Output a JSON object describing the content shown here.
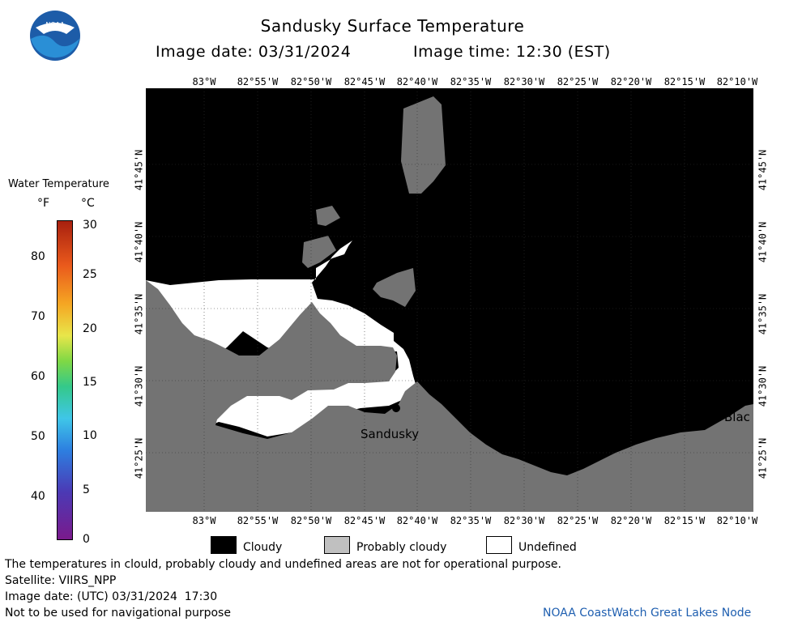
{
  "title": "Sandusky Surface Temperature",
  "image_date_label": "Image date: 03/31/2024",
  "image_time_label": "Image time: 12:30 (EST)",
  "lon_labels": [
    "83°W",
    "82°55'W",
    "82°50'W",
    "82°45'W",
    "82°40'W",
    "82°35'W",
    "82°30'W",
    "82°25'W",
    "82°20'W",
    "82°15'W",
    "82°10'W"
  ],
  "lat_labels": [
    "41°45'N",
    "41°40'N",
    "41°35'N",
    "41°30'N",
    "41°25'N"
  ],
  "colorbar": {
    "title": "Water Temperature",
    "unit_f": "°F",
    "unit_c": "°C",
    "f_ticks": [
      "80",
      "70",
      "60",
      "50",
      "40"
    ],
    "c_ticks": [
      "30",
      "25",
      "20",
      "15",
      "10",
      "5",
      "0"
    ]
  },
  "places": {
    "city1": "Sandusky",
    "city2": "Blac"
  },
  "legend": {
    "cloudy": "Cloudy",
    "probably_cloudy": "Probably cloudy",
    "undefined": "Undefined"
  },
  "footer": {
    "disclaimer": "The temperatures in clould, probably cloudy and undefined areas are not for operational purpose.",
    "satellite": "Satellite: VIIRS_NPP",
    "utc_date": "Image date: (UTC) 03/31/2024  17:30",
    "nav": "Not to be used for navigational purpose",
    "credit": "NOAA CoastWatch Great Lakes Node"
  },
  "logo_text": "NOAA",
  "colors": {
    "cloudy": "#000000",
    "land": "#737373",
    "undefined": "#ffffff",
    "probably_cloudy": "#c0c0c0",
    "credit": "#1f5fb0"
  }
}
